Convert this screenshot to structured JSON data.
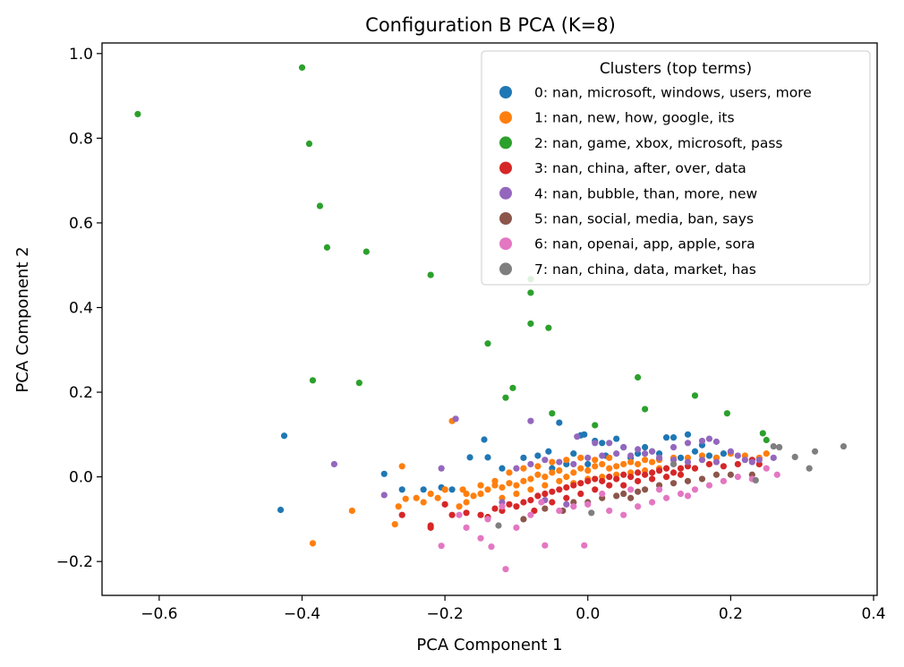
{
  "chart_data": {
    "type": "scatter",
    "title": "Configuration B PCA (K=8)",
    "xlabel": "PCA Component 1",
    "ylabel": "PCA Component 2",
    "xlim": [
      -0.68,
      0.405
    ],
    "ylim": [
      -0.28,
      1.025
    ],
    "xticks": [
      -0.6,
      -0.4,
      -0.2,
      0.0,
      0.2,
      0.4
    ],
    "xtick_labels": [
      "−0.6",
      "−0.4",
      "−0.2",
      "0.0",
      "0.2",
      "0.4"
    ],
    "yticks": [
      -0.2,
      0.0,
      0.2,
      0.4,
      0.6,
      0.8,
      1.0
    ],
    "ytick_labels": [
      "−0.2",
      "0.0",
      "0.2",
      "0.4",
      "0.6",
      "0.8",
      "1.0"
    ],
    "grid": false,
    "legend": {
      "title": "Clusters (top terms)",
      "placement": "top-right"
    },
    "series": [
      {
        "name": "0: nan, microsoft, windows, users, more",
        "color": "#1f77b4",
        "points": [
          [
            -0.43,
            -0.078
          ],
          [
            -0.425,
            0.097
          ],
          [
            -0.285,
            0.007
          ],
          [
            -0.26,
            -0.03
          ],
          [
            -0.23,
            -0.03
          ],
          [
            -0.205,
            -0.025
          ],
          [
            -0.19,
            -0.03
          ],
          [
            -0.165,
            0.046
          ],
          [
            -0.145,
            0.088
          ],
          [
            -0.14,
            0.046
          ],
          [
            -0.04,
            0.128
          ],
          [
            -0.01,
            0.098
          ],
          [
            -0.005,
            0.1
          ],
          [
            0.01,
            0.085
          ],
          [
            0.02,
            0.08
          ],
          [
            0.04,
            0.09
          ],
          [
            0.05,
            0.07
          ],
          [
            0.07,
            0.055
          ],
          [
            0.08,
            0.07
          ],
          [
            0.09,
            0.06
          ],
          [
            0.1,
            0.055
          ],
          [
            0.11,
            0.093
          ],
          [
            0.12,
            0.093
          ],
          [
            0.14,
            0.1
          ],
          [
            0.15,
            0.06
          ],
          [
            0.16,
            0.075
          ],
          [
            0.17,
            0.05
          ],
          [
            0.18,
            0.045
          ],
          [
            0.19,
            0.055
          ],
          [
            -0.07,
            0.05
          ],
          [
            -0.055,
            0.06
          ],
          [
            -0.02,
            0.055
          ],
          [
            -0.03,
            0.03
          ],
          [
            0.0,
            0.03
          ],
          [
            0.06,
            0.045
          ],
          [
            0.13,
            0.045
          ],
          [
            -0.09,
            0.045
          ],
          [
            -0.05,
            0.02
          ],
          [
            0.025,
            0.05
          ],
          [
            -0.12,
            0.02
          ]
        ]
      },
      {
        "name": "1: nan, new, how, google, its",
        "color": "#ff7f0e",
        "points": [
          [
            -0.385,
            -0.157
          ],
          [
            -0.33,
            -0.08
          ],
          [
            -0.27,
            -0.112
          ],
          [
            -0.265,
            -0.07
          ],
          [
            -0.255,
            -0.052
          ],
          [
            -0.24,
            -0.05
          ],
          [
            -0.22,
            -0.04
          ],
          [
            -0.2,
            -0.03
          ],
          [
            -0.18,
            -0.07
          ],
          [
            -0.175,
            -0.03
          ],
          [
            -0.17,
            -0.04
          ],
          [
            -0.16,
            -0.045
          ],
          [
            -0.15,
            -0.04
          ],
          [
            -0.14,
            -0.03
          ],
          [
            -0.13,
            -0.02
          ],
          [
            -0.12,
            -0.025
          ],
          [
            -0.11,
            -0.015
          ],
          [
            -0.1,
            -0.02
          ],
          [
            -0.09,
            -0.01
          ],
          [
            -0.08,
            -0.005
          ],
          [
            -0.07,
            0.005
          ],
          [
            -0.06,
            0.0
          ],
          [
            -0.05,
            0.01
          ],
          [
            -0.04,
            0.015
          ],
          [
            -0.03,
            0.0
          ],
          [
            -0.02,
            0.01
          ],
          [
            -0.01,
            0.02
          ],
          [
            0.0,
            0.015
          ],
          [
            0.01,
            0.025
          ],
          [
            0.02,
            0.03
          ],
          [
            0.03,
            0.02
          ],
          [
            0.04,
            0.025
          ],
          [
            0.05,
            0.03
          ],
          [
            0.06,
            0.035
          ],
          [
            0.07,
            0.03
          ],
          [
            0.08,
            0.04
          ],
          [
            0.09,
            0.035
          ],
          [
            0.1,
            0.04
          ],
          [
            0.12,
            0.045
          ],
          [
            0.14,
            0.045
          ],
          [
            0.16,
            0.05
          ],
          [
            0.18,
            0.045
          ],
          [
            0.2,
            0.055
          ],
          [
            0.22,
            0.05
          ],
          [
            0.24,
            0.045
          ],
          [
            0.25,
            0.055
          ],
          [
            -0.26,
            0.025
          ],
          [
            -0.19,
            0.132
          ],
          [
            -0.2,
            -0.03
          ],
          [
            -0.12,
            -0.05
          ],
          [
            -0.1,
            -0.04
          ],
          [
            -0.08,
            -0.03
          ],
          [
            -0.06,
            -0.02
          ],
          [
            -0.04,
            -0.01
          ],
          [
            -0.02,
            -0.015
          ],
          [
            0.0,
            -0.005
          ],
          [
            0.02,
            0.0
          ],
          [
            0.04,
            0.005
          ],
          [
            0.06,
            0.01
          ],
          [
            0.08,
            0.015
          ],
          [
            0.1,
            0.02
          ],
          [
            -0.11,
            0.01
          ],
          [
            -0.09,
            0.02
          ],
          [
            -0.07,
            0.025
          ],
          [
            -0.05,
            0.035
          ],
          [
            -0.03,
            0.04
          ],
          [
            -0.01,
            0.045
          ],
          [
            0.01,
            0.04
          ],
          [
            0.03,
            0.045
          ],
          [
            -0.15,
            -0.02
          ],
          [
            -0.13,
            -0.01
          ],
          [
            -0.23,
            -0.06
          ],
          [
            -0.21,
            -0.05
          ],
          [
            -0.17,
            -0.06
          ]
        ]
      },
      {
        "name": "2: nan, game, xbox, microsoft, pass",
        "color": "#2ca02c",
        "points": [
          [
            -0.63,
            0.857
          ],
          [
            -0.4,
            0.967
          ],
          [
            -0.39,
            0.787
          ],
          [
            -0.375,
            0.64
          ],
          [
            -0.365,
            0.542
          ],
          [
            -0.31,
            0.532
          ],
          [
            -0.22,
            0.477
          ],
          [
            -0.08,
            0.467
          ],
          [
            -0.08,
            0.435
          ],
          [
            -0.08,
            0.362
          ],
          [
            -0.055,
            0.352
          ],
          [
            -0.14,
            0.315
          ],
          [
            -0.385,
            0.228
          ],
          [
            -0.32,
            0.222
          ],
          [
            -0.105,
            0.21
          ],
          [
            -0.115,
            0.187
          ],
          [
            0.07,
            0.235
          ],
          [
            0.15,
            0.192
          ],
          [
            0.08,
            0.16
          ],
          [
            0.195,
            0.15
          ],
          [
            -0.05,
            0.15
          ],
          [
            0.01,
            0.122
          ],
          [
            0.245,
            0.103
          ],
          [
            0.25,
            0.087
          ]
        ]
      },
      {
        "name": "3: nan, china, after, over, data",
        "color": "#d62728",
        "points": [
          [
            -0.26,
            -0.09
          ],
          [
            -0.22,
            -0.115
          ],
          [
            -0.22,
            -0.12
          ],
          [
            -0.2,
            -0.065
          ],
          [
            -0.19,
            -0.09
          ],
          [
            -0.17,
            -0.085
          ],
          [
            -0.15,
            -0.09
          ],
          [
            -0.14,
            -0.095
          ],
          [
            -0.13,
            -0.075
          ],
          [
            -0.12,
            -0.08
          ],
          [
            -0.11,
            -0.065
          ],
          [
            -0.1,
            -0.07
          ],
          [
            -0.09,
            -0.06
          ],
          [
            -0.08,
            -0.055
          ],
          [
            -0.07,
            -0.045
          ],
          [
            -0.06,
            -0.04
          ],
          [
            -0.05,
            -0.035
          ],
          [
            -0.04,
            -0.03
          ],
          [
            -0.03,
            -0.025
          ],
          [
            -0.02,
            -0.02
          ],
          [
            -0.01,
            -0.015
          ],
          [
            0.0,
            -0.01
          ],
          [
            0.01,
            -0.005
          ],
          [
            0.02,
            -0.01
          ],
          [
            0.03,
            0.0
          ],
          [
            0.04,
            -0.005
          ],
          [
            0.05,
            0.005
          ],
          [
            0.06,
            0.0
          ],
          [
            0.07,
            0.01
          ],
          [
            0.08,
            0.005
          ],
          [
            0.09,
            0.01
          ],
          [
            0.1,
            0.015
          ],
          [
            0.11,
            0.02
          ],
          [
            0.12,
            0.01
          ],
          [
            0.13,
            0.02
          ],
          [
            0.14,
            0.025
          ],
          [
            0.15,
            0.02
          ],
          [
            0.17,
            0.03
          ],
          [
            0.19,
            0.025
          ],
          [
            0.21,
            0.03
          ],
          [
            0.23,
            0.04
          ],
          [
            0.24,
            0.03
          ],
          [
            -0.075,
            -0.08
          ],
          [
            -0.05,
            -0.06
          ],
          [
            -0.03,
            -0.05
          ],
          [
            -0.01,
            -0.04
          ],
          [
            0.01,
            -0.03
          ],
          [
            0.03,
            -0.02
          ],
          [
            0.05,
            -0.02
          ],
          [
            0.07,
            -0.01
          ],
          [
            0.09,
            -0.005
          ],
          [
            0.11,
            0.0
          ],
          [
            0.13,
            0.005
          ]
        ]
      },
      {
        "name": "4: nan, bubble, than, more, new",
        "color": "#9467bd",
        "points": [
          [
            -0.355,
            0.03
          ],
          [
            -0.285,
            -0.043
          ],
          [
            -0.205,
            0.02
          ],
          [
            -0.185,
            0.137
          ],
          [
            -0.08,
            0.132
          ],
          [
            -0.015,
            0.095
          ],
          [
            0.01,
            0.08
          ],
          [
            0.03,
            0.08
          ],
          [
            0.05,
            0.07
          ],
          [
            0.07,
            0.065
          ],
          [
            0.09,
            0.06
          ],
          [
            0.12,
            0.07
          ],
          [
            0.14,
            0.08
          ],
          [
            0.16,
            0.085
          ],
          [
            0.17,
            0.09
          ],
          [
            0.18,
            0.083
          ],
          [
            0.2,
            0.06
          ],
          [
            0.21,
            0.05
          ],
          [
            0.22,
            0.04
          ],
          [
            0.23,
            0.035
          ],
          [
            0.24,
            0.04
          ],
          [
            0.26,
            0.045
          ],
          [
            -0.1,
            0.02
          ],
          [
            -0.08,
            0.03
          ],
          [
            -0.06,
            0.04
          ],
          [
            -0.04,
            0.035
          ],
          [
            -0.02,
            0.03
          ],
          [
            0.0,
            0.045
          ],
          [
            0.02,
            0.05
          ],
          [
            0.04,
            0.055
          ],
          [
            0.06,
            0.05
          ],
          [
            0.08,
            0.055
          ],
          [
            0.1,
            0.045
          ],
          [
            0.12,
            0.04
          ],
          [
            0.14,
            0.035
          ],
          [
            0.16,
            0.04
          ],
          [
            0.18,
            0.035
          ],
          [
            -0.12,
            -0.06
          ],
          [
            -0.06,
            -0.055
          ],
          [
            -0.03,
            -0.065
          ]
        ]
      },
      {
        "name": "5: nan, social, media, ban, says",
        "color": "#8c564b",
        "points": [
          [
            -0.09,
            -0.1
          ],
          [
            -0.06,
            -0.075
          ],
          [
            -0.035,
            -0.08
          ],
          [
            0.0,
            -0.06
          ],
          [
            0.02,
            -0.05
          ],
          [
            0.04,
            -0.045
          ],
          [
            0.05,
            -0.04
          ],
          [
            0.07,
            -0.035
          ],
          [
            0.1,
            -0.02
          ],
          [
            0.12,
            -0.015
          ],
          [
            0.14,
            -0.01
          ],
          [
            0.16,
            -0.005
          ],
          [
            0.18,
            0.005
          ],
          [
            0.2,
            0.005
          ],
          [
            0.23,
            0.005
          ],
          [
            -0.02,
            -0.06
          ],
          [
            0.06,
            -0.05
          ],
          [
            0.08,
            -0.03
          ]
        ]
      },
      {
        "name": "6: nan, openai, app, apple, sora",
        "color": "#e377c2",
        "points": [
          [
            -0.115,
            -0.218
          ],
          [
            -0.205,
            -0.163
          ],
          [
            -0.15,
            -0.145
          ],
          [
            -0.135,
            -0.165
          ],
          [
            -0.06,
            -0.162
          ],
          [
            -0.005,
            -0.162
          ],
          [
            -0.17,
            -0.12
          ],
          [
            -0.1,
            -0.12
          ],
          [
            -0.18,
            -0.09
          ],
          [
            -0.14,
            -0.1
          ],
          [
            -0.08,
            -0.09
          ],
          [
            -0.04,
            -0.08
          ],
          [
            -0.02,
            -0.07
          ],
          [
            0.0,
            -0.065
          ],
          [
            0.03,
            -0.08
          ],
          [
            0.05,
            -0.09
          ],
          [
            0.07,
            -0.07
          ],
          [
            0.09,
            -0.06
          ],
          [
            0.11,
            -0.05
          ],
          [
            0.13,
            -0.04
          ],
          [
            0.15,
            -0.03
          ],
          [
            0.17,
            -0.02
          ],
          [
            0.19,
            -0.01
          ],
          [
            0.21,
            0.0
          ],
          [
            0.23,
            -0.005
          ],
          [
            0.25,
            0.02
          ],
          [
            0.265,
            0.005
          ],
          [
            0.06,
            -0.03
          ],
          [
            0.1,
            -0.03
          ],
          [
            0.14,
            -0.045
          ],
          [
            -0.12,
            -0.07
          ],
          [
            -0.065,
            -0.06
          ],
          [
            0.02,
            -0.04
          ]
        ]
      },
      {
        "name": "7: nan, china, data, market, has",
        "color": "#7f7f7f",
        "points": [
          [
            0.358,
            0.072
          ],
          [
            0.318,
            0.06
          ],
          [
            0.31,
            0.02
          ],
          [
            0.29,
            0.047
          ],
          [
            0.268,
            0.07
          ],
          [
            0.235,
            -0.008
          ],
          [
            -0.125,
            -0.115
          ],
          [
            0.005,
            -0.085
          ],
          [
            0.12,
            0.03
          ],
          [
            0.26,
            0.072
          ]
        ]
      }
    ]
  }
}
